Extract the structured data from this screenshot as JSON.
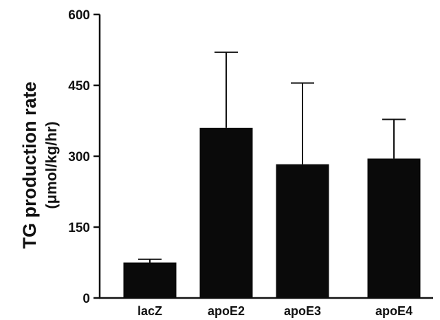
{
  "chart_data": {
    "type": "bar",
    "categories": [
      "lacZ",
      "apoE2",
      "apoE3",
      "apoE4"
    ],
    "values": [
      75,
      360,
      283,
      295
    ],
    "error_upper": [
      82,
      520,
      455,
      378
    ],
    "ylabel": "TG production rate",
    "ylabel_unit": "(μmol/kg/hr)",
    "ylim": [
      0,
      600
    ],
    "yticks": [
      0,
      150,
      300,
      450,
      600
    ],
    "grid": false,
    "bar_color": "#0a0a0a"
  }
}
